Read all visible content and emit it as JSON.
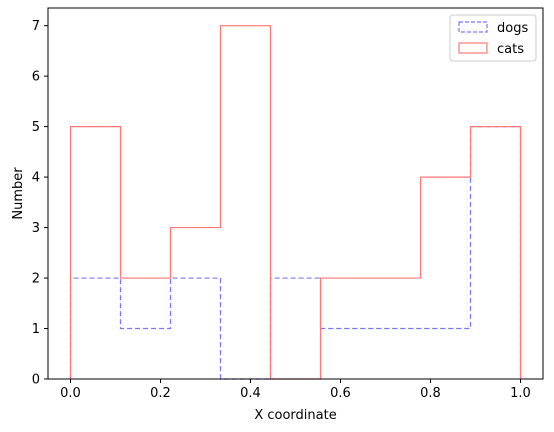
{
  "chart_data": {
    "type": "histogram",
    "bin_edges": [
      0.0,
      0.1111,
      0.2222,
      0.3333,
      0.4444,
      0.5556,
      0.6667,
      0.7778,
      0.8889,
      1.0
    ],
    "series": [
      {
        "name": "dogs",
        "values": [
          2,
          1,
          2,
          0,
          2,
          1,
          1,
          1,
          5
        ],
        "color": "#7777ff",
        "linestyle": "dashed"
      },
      {
        "name": "cats",
        "values": [
          5,
          2,
          3,
          7,
          0,
          2,
          2,
          4,
          5
        ],
        "color": "#ff7777",
        "linestyle": "solid"
      }
    ],
    "xlabel": "X coordinate",
    "ylabel": "Number",
    "xlim": [
      -0.05,
      1.05
    ],
    "ylim": [
      0,
      7.35
    ],
    "xticks": [
      0.0,
      0.2,
      0.4,
      0.6,
      0.8,
      1.0
    ],
    "xtick_labels": [
      "0.0",
      "0.2",
      "0.4",
      "0.6",
      "0.8",
      "1.0"
    ],
    "yticks": [
      0,
      1,
      2,
      3,
      4,
      5,
      6,
      7
    ],
    "ytick_labels": [
      "0",
      "1",
      "2",
      "3",
      "4",
      "5",
      "6",
      "7"
    ],
    "grid": false,
    "legend_position": "top-right"
  }
}
